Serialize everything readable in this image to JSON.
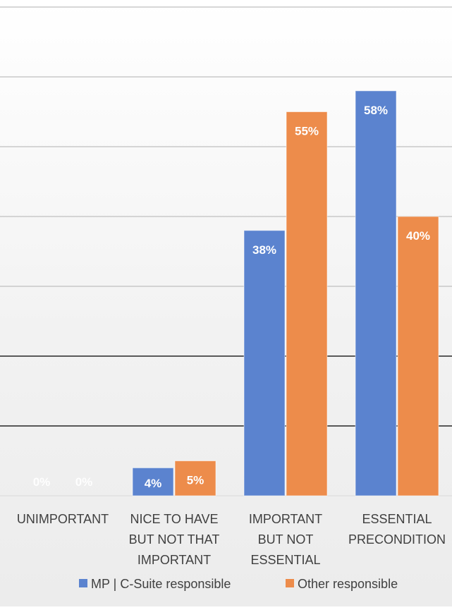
{
  "chart_data": {
    "type": "bar",
    "categories": [
      [
        "UNIMPORTANT"
      ],
      [
        "NICE TO HAVE",
        "BUT NOT THAT",
        "IMPORTANT"
      ],
      [
        "IMPORTANT",
        "BUT NOT",
        "ESSENTIAL"
      ],
      [
        "ESSENTIAL",
        "PRECONDITION"
      ]
    ],
    "series": [
      {
        "name": "MP | C-Suite responsible",
        "values": [
          0,
          4,
          38,
          58
        ],
        "labels": [
          "0%",
          "4%",
          "38%",
          "58%"
        ],
        "color": "#5b83cf"
      },
      {
        "name": "Other responsible",
        "values": [
          0,
          5,
          55,
          40
        ],
        "labels": [
          "0%",
          "5%",
          "55%",
          "40%"
        ],
        "color": "#ed8c4b"
      }
    ],
    "ylim": [
      0,
      70
    ],
    "grid": true,
    "legend": "bottom",
    "data_label_color": "#ffffff",
    "axis_label_color": "#404040"
  }
}
